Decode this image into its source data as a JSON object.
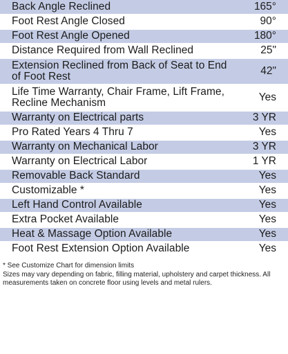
{
  "specs": [
    {
      "label": "Back Angle Reclined",
      "value": "165°",
      "shaded": true,
      "height": 20
    },
    {
      "label": "Foot Rest Angle Closed",
      "value": "90°",
      "shaded": false,
      "height": 19
    },
    {
      "label": "Foot Rest Angle Opened",
      "value": "180°",
      "shaded": true,
      "height": 19
    },
    {
      "label": "Distance Required from Wall Reclined",
      "value": "25\"",
      "shaded": false,
      "height": 19
    },
    {
      "label": "Extension Reclined from Back of Seat to End of Foot Rest",
      "value": "42\"",
      "shaded": true,
      "height": 36
    },
    {
      "label": "Life Time Warranty, Chair Frame, Lift Frame, Recline Mechanism",
      "value": "Yes",
      "shaded": false,
      "height": 36
    },
    {
      "label": "Warranty on Electrical parts",
      "value": "3 YR",
      "shaded": true,
      "height": 19
    },
    {
      "label": "Pro Rated Years 4 Thru 7",
      "value": "Yes",
      "shaded": false,
      "height": 19
    },
    {
      "label": "Warranty on Mechanical Labor",
      "value": "3 YR",
      "shaded": true,
      "height": 19
    },
    {
      "label": "Warranty on Electrical Labor",
      "value": "1 YR",
      "shaded": false,
      "height": 19
    },
    {
      "label": "Removable Back Standard",
      "value": "Yes",
      "shaded": true,
      "height": 19
    },
    {
      "label": "Customizable *",
      "value": "Yes",
      "shaded": false,
      "height": 19
    },
    {
      "label": "Left Hand Control Available",
      "value": "Yes",
      "shaded": true,
      "height": 19
    },
    {
      "label": "Extra Pocket Available",
      "value": "Yes",
      "shaded": false,
      "height": 19
    },
    {
      "label": "Heat & Massage Option Available",
      "value": "Yes",
      "shaded": true,
      "height": 19
    },
    {
      "label": "Foot Rest Extension Option Available",
      "value": "Yes",
      "shaded": false,
      "height": 19
    }
  ],
  "notes": {
    "line1": "* See Customize Chart for dimension limits",
    "line2": "Sizes may vary depending on fabric, filling material, upholstery and carpet thickness. All measurements taken on concrete floor using levels and metal rulers."
  },
  "colors": {
    "row_shade": "#c4cce5",
    "text": "#1c1c1c"
  }
}
